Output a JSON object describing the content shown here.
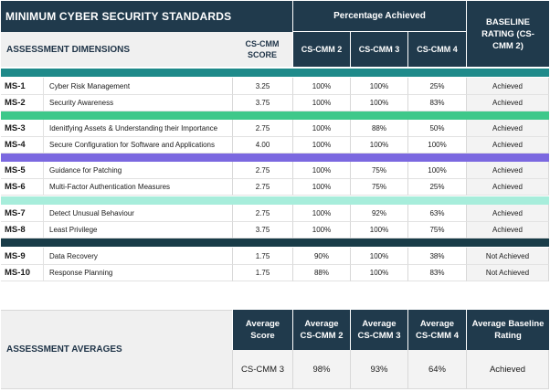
{
  "header": {
    "title": "MINIMUM CYBER SECURITY STANDARDS",
    "percentage_achieved": "Percentage Achieved",
    "baseline_rating": "BASELINE RATING (CS-CMM 2)",
    "assessment_dimensions": "ASSESSMENT DIMENSIONS",
    "score": "CS-CMM SCORE",
    "cmm2": "CS-CMM 2",
    "cmm3": "CS-CMM 3",
    "cmm4": "CS-CMM 4"
  },
  "group_colors": [
    "#1f8a8a",
    "#3ec88a",
    "#7b68e0",
    "#a7eddb",
    "#193c48"
  ],
  "rows": [
    {
      "code": "MS-1",
      "dimension": "Cyber Risk Management",
      "score": "3.25",
      "p2": "100%",
      "p3": "100%",
      "p4": "25%",
      "rating": "Achieved"
    },
    {
      "code": "MS-2",
      "dimension": "Security Awareness",
      "score": "3.75",
      "p2": "100%",
      "p3": "100%",
      "p4": "83%",
      "rating": "Achieved"
    },
    {
      "code": "MS-3",
      "dimension": "Idenitfying Assets & Understanding their Importance",
      "score": "2.75",
      "p2": "100%",
      "p3": "88%",
      "p4": "50%",
      "rating": "Achieved"
    },
    {
      "code": "MS-4",
      "dimension": "Secure Configuration for Software and Applications",
      "score": "4.00",
      "p2": "100%",
      "p3": "100%",
      "p4": "100%",
      "rating": "Achieved"
    },
    {
      "code": "MS-5",
      "dimension": "Guidance for Patching",
      "score": "2.75",
      "p2": "100%",
      "p3": "75%",
      "p4": "100%",
      "rating": "Achieved"
    },
    {
      "code": "MS-6",
      "dimension": "Multi-Factor Authentication Measures",
      "score": "2.75",
      "p2": "100%",
      "p3": "75%",
      "p4": "25%",
      "rating": "Achieved"
    },
    {
      "code": "MS-7",
      "dimension": "Detect Unusual Behaviour",
      "score": "2.75",
      "p2": "100%",
      "p3": "92%",
      "p4": "63%",
      "rating": "Achieved"
    },
    {
      "code": "MS-8",
      "dimension": "Least Privilege",
      "score": "3.75",
      "p2": "100%",
      "p3": "100%",
      "p4": "75%",
      "rating": "Achieved"
    },
    {
      "code": "MS-9",
      "dimension": "Data Recovery",
      "score": "1.75",
      "p2": "90%",
      "p3": "100%",
      "p4": "38%",
      "rating": "Not Achieved"
    },
    {
      "code": "MS-10",
      "dimension": "Response Planning",
      "score": "1.75",
      "p2": "88%",
      "p3": "100%",
      "p4": "83%",
      "rating": "Not Achieved"
    }
  ],
  "averages": {
    "label": "ASSESSMENT AVERAGES",
    "headers": {
      "score": "Average Score",
      "cmm2": "Average CS-CMM 2",
      "cmm3": "Average CS-CMM 3",
      "cmm4": "Average CS-CMM 4",
      "rating": "Average Baseline Rating"
    },
    "values": {
      "score": "CS-CMM 3",
      "cmm2": "98%",
      "cmm3": "93%",
      "cmm4": "64%",
      "rating": "Achieved"
    }
  }
}
